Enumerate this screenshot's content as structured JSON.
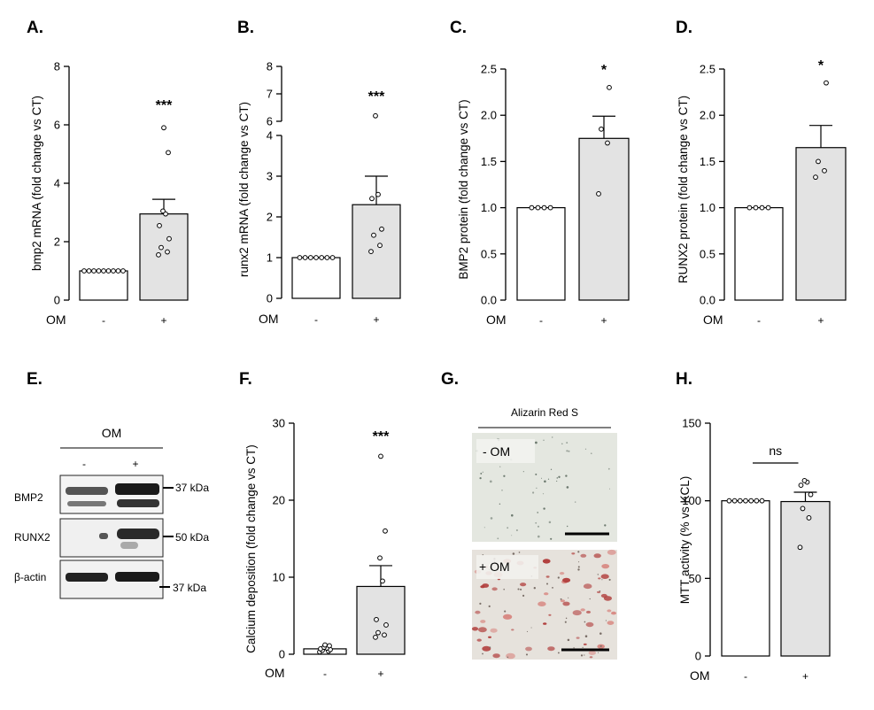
{
  "panel_labels": [
    "A.",
    "B.",
    "C.",
    "D.",
    "E.",
    "F.",
    "G.",
    "H."
  ],
  "chart_data": [
    {
      "panel": "A.",
      "type": "bar",
      "ylabel": "bmp2 mRNA  (fold change vs CT)",
      "ylim": [
        0,
        8
      ],
      "yticks": [
        0,
        2,
        4,
        6,
        8
      ],
      "factor_label": "OM",
      "categories": [
        "-",
        "+"
      ],
      "values": [
        1.0,
        2.95
      ],
      "sem": [
        0,
        0.5
      ],
      "points": [
        [
          1,
          1,
          1,
          1,
          1,
          1,
          1,
          1,
          1
        ],
        [
          1.55,
          1.65,
          1.8,
          2.1,
          2.55,
          2.95,
          3.05,
          5.05,
          5.9
        ]
      ],
      "significance": "***"
    },
    {
      "panel": "B.",
      "type": "bar",
      "ylabel": "runx2 mRNA  (fold change vs CT)",
      "ylim": [
        0,
        8
      ],
      "axis_break": [
        4,
        6
      ],
      "yticks": [
        0,
        1,
        2,
        3,
        4,
        6,
        7,
        8
      ],
      "factor_label": "OM",
      "categories": [
        "-",
        "+"
      ],
      "values": [
        1.0,
        2.3
      ],
      "sem": [
        0,
        0.7
      ],
      "points": [
        [
          1,
          1,
          1,
          1,
          1,
          1,
          1
        ],
        [
          1.15,
          1.3,
          1.55,
          1.7,
          2.45,
          2.55,
          6.2
        ]
      ],
      "significance": "***"
    },
    {
      "panel": "C.",
      "type": "bar",
      "ylabel": "BMP2 protein (fold change vs CT)",
      "ylim": [
        0,
        2.5
      ],
      "yticks": [
        "0.0",
        "0.5",
        "1.0",
        "1.5",
        "2.0",
        "2.5"
      ],
      "factor_label": "OM",
      "categories": [
        "-",
        "+"
      ],
      "values": [
        1.0,
        1.75
      ],
      "sem": [
        0,
        0.24
      ],
      "points": [
        [
          1,
          1,
          1,
          1
        ],
        [
          1.15,
          1.7,
          1.85,
          2.3
        ]
      ],
      "significance": "*"
    },
    {
      "panel": "D.",
      "type": "bar",
      "ylabel": "RUNX2 protein (fold change vs CT)",
      "ylim": [
        0,
        2.5
      ],
      "yticks": [
        "0.0",
        "0.5",
        "1.0",
        "1.5",
        "2.0",
        "2.5"
      ],
      "factor_label": "OM",
      "categories": [
        "-",
        "+"
      ],
      "values": [
        1.0,
        1.65
      ],
      "sem": [
        0,
        0.24
      ],
      "points": [
        [
          1,
          1,
          1,
          1
        ],
        [
          1.33,
          1.4,
          1.5,
          2.35
        ]
      ],
      "significance": "*"
    },
    {
      "panel": "F.",
      "type": "bar",
      "ylabel": "Calcium deposition (fold change vs CT)",
      "ylim": [
        0,
        30
      ],
      "yticks": [
        0,
        10,
        20,
        30
      ],
      "factor_label": "OM",
      "categories": [
        "-",
        "+"
      ],
      "values": [
        0.7,
        8.8
      ],
      "sem": [
        0,
        2.7
      ],
      "points": [
        [
          0.3,
          0.4,
          0.5,
          0.6,
          0.7,
          0.8,
          0.9,
          1.1,
          1.2
        ],
        [
          2.2,
          2.5,
          2.8,
          3.8,
          4.5,
          9.5,
          12.5,
          16.0,
          25.7
        ]
      ],
      "significance": "***"
    },
    {
      "panel": "H.",
      "type": "bar",
      "ylabel": "MTT activity (% vs KCL)",
      "ylim": [
        0,
        150
      ],
      "yticks": [
        0,
        50,
        100,
        150
      ],
      "factor_label": "OM",
      "categories": [
        "-",
        "+"
      ],
      "values": [
        100,
        99.5
      ],
      "sem": [
        0,
        6
      ],
      "points": [
        [
          100,
          100,
          100,
          100,
          100,
          100,
          100
        ],
        [
          70,
          89,
          95,
          104,
          110,
          112,
          113
        ]
      ],
      "significance": "ns"
    }
  ],
  "western_blot": {
    "panel": "E.",
    "treatment_label": "OM",
    "lane_labels": [
      "-",
      "+"
    ],
    "bands": [
      {
        "name": "BMP2",
        "marker": "37 kDa"
      },
      {
        "name": "RUNX2",
        "marker": "50 kDa"
      },
      {
        "name": "β-actin",
        "marker": "37 kDa"
      }
    ]
  },
  "staining": {
    "panel": "G.",
    "title": "Alizarin Red S",
    "images": [
      "- OM",
      "+ OM"
    ]
  }
}
